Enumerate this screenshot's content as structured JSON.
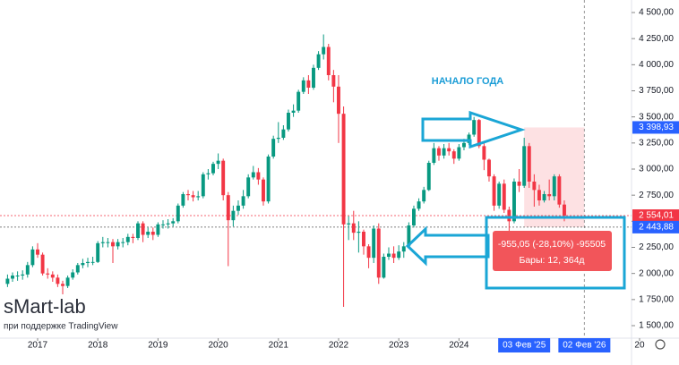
{
  "chart_data": {
    "type": "candlestick",
    "watermark": "sMart-lab",
    "watermark_sub": "при поддержке TradingView",
    "annotation": "НАЧАЛО ГОДА",
    "tooltip": [
      "-955,05 (-28,10%) -95505",
      "Бары: 12, 364д"
    ],
    "up_color": "#089981",
    "down_color": "#f23645",
    "xlim": [
      -1.5,
      124.4
    ],
    "ylim": [
      1380,
      4620
    ],
    "xticks": [
      {
        "value": 6,
        "label": "2017"
      },
      {
        "value": 18,
        "label": "2018"
      },
      {
        "value": 30,
        "label": "2019"
      },
      {
        "value": 42,
        "label": "2020"
      },
      {
        "value": 54,
        "label": "2021"
      },
      {
        "value": 66,
        "label": "2022"
      },
      {
        "value": 78,
        "label": "2023"
      },
      {
        "value": 90,
        "label": "2024"
      },
      {
        "value": 126,
        "label": "20"
      }
    ],
    "date_markers": [
      {
        "value": 103,
        "label": "03 Фев '25"
      },
      {
        "value": 115,
        "label": "02 Фев '26"
      }
    ],
    "yticks": [
      {
        "value": 1500,
        "label": "1 500,00"
      },
      {
        "value": 1750,
        "label": "1 750,00"
      },
      {
        "value": 2000,
        "label": "2 000,00"
      },
      {
        "value": 2250,
        "label": "2 250,00"
      },
      {
        "value": 2500,
        "label": "2 500,00"
      },
      {
        "value": 2750,
        "label": "2 750,00"
      },
      {
        "value": 3000,
        "label": "3 000,00"
      },
      {
        "value": 3250,
        "label": "3 250,00"
      },
      {
        "value": 3500,
        "label": "3 500,00"
      },
      {
        "value": 3750,
        "label": "3 750,00"
      },
      {
        "value": 4000,
        "label": "4 000,00"
      },
      {
        "value": 4250,
        "label": "4 250,00"
      },
      {
        "value": 4500,
        "label": "4 500,00"
      }
    ],
    "price_labels": [
      {
        "value": 3398.93,
        "label": "3 398,93",
        "color": "#2962ff"
      },
      {
        "value": 2554.01,
        "label": "2 554,01",
        "color": "#f23645"
      },
      {
        "value": 2443.88,
        "label": "2 443,88",
        "color": "#2962ff"
      }
    ],
    "open": [
      1900,
      1950,
      1980,
      1980,
      1990,
      2080,
      2230,
      2180,
      2000,
      1990,
      1960,
      1900,
      1880,
      1960,
      2010,
      2080,
      2100,
      2110,
      2110,
      2290,
      2300,
      2300,
      2260,
      2300,
      2300,
      2350,
      2340,
      2480,
      2370,
      2400,
      2370,
      2470,
      2470,
      2480,
      2500,
      2650,
      2760,
      2750,
      2730,
      2740,
      2950,
      2960,
      3050,
      3080,
      2750,
      2510,
      2600,
      2650,
      2740,
      2920,
      2970,
      2900,
      2690,
      3120,
      3290,
      3300,
      3380,
      3540,
      3560,
      3740,
      3850,
      3780,
      3970,
      4100,
      4170,
      3900,
      3790,
      3530,
      2470,
      2480,
      2390,
      2400,
      2260,
      2150,
      2430,
      1960,
      2160,
      2190,
      2150,
      2210,
      2260,
      2460,
      2620,
      2690,
      2800,
      3060,
      3200,
      3130,
      3200,
      3170,
      3100,
      3210,
      3250,
      3330,
      3470,
      3220,
      3090,
      2930,
      2650,
      2860,
      2610,
      2500,
      2880,
      2840,
      3220,
      2880,
      2800,
      2700,
      2760,
      2740,
      2930,
      2660
    ],
    "high": [
      1990,
      2010,
      2020,
      2030,
      2110,
      2260,
      2290,
      2200,
      2050,
      2020,
      1990,
      1930,
      1980,
      2040,
      2100,
      2140,
      2150,
      2160,
      2310,
      2350,
      2340,
      2330,
      2330,
      2340,
      2380,
      2380,
      2500,
      2500,
      2440,
      2440,
      2490,
      2510,
      2520,
      2530,
      2670,
      2780,
      2800,
      2790,
      2790,
      2970,
      3000,
      3070,
      3150,
      3100,
      2780,
      2650,
      2700,
      2800,
      2950,
      3030,
      3010,
      2920,
      3140,
      3320,
      3450,
      3420,
      3570,
      3620,
      3760,
      3880,
      3900,
      4000,
      4130,
      4290,
      4200,
      3950,
      3900,
      3600,
      2550,
      2600,
      2500,
      2420,
      2280,
      2460,
      2480,
      2190,
      2250,
      2260,
      2270,
      2300,
      2490,
      2650,
      2720,
      2830,
      3080,
      3250,
      3220,
      3240,
      3250,
      3190,
      3240,
      3290,
      3350,
      3500,
      3480,
      3260,
      3100,
      2950,
      2880,
      2900,
      2640,
      2910,
      3000,
      3300,
      3250,
      2950,
      2850,
      2790,
      2900,
      2950,
      2950,
      2700
    ],
    "low": [
      1870,
      1920,
      1930,
      1940,
      1960,
      2060,
      2150,
      1980,
      1950,
      1920,
      1870,
      1800,
      1860,
      1940,
      1990,
      2050,
      2060,
      2080,
      2100,
      2250,
      2250,
      2100,
      2230,
      2250,
      2270,
      2290,
      2320,
      2300,
      2340,
      2320,
      2350,
      2430,
      2430,
      2450,
      2480,
      2630,
      2700,
      2690,
      2700,
      2720,
      2900,
      2940,
      3000,
      2700,
      2070,
      2450,
      2560,
      2620,
      2720,
      2900,
      2850,
      2650,
      2670,
      3100,
      3250,
      3280,
      3360,
      3500,
      3540,
      3720,
      3720,
      3760,
      3950,
      4050,
      3850,
      3640,
      3250,
      1680,
      2320,
      2320,
      2200,
      2180,
      2050,
      2100,
      1900,
      1950,
      2130,
      2100,
      2130,
      2150,
      2240,
      2440,
      2600,
      2670,
      2790,
      3040,
      3080,
      3100,
      3130,
      3050,
      3080,
      3180,
      3230,
      3310,
      3200,
      2990,
      2880,
      2600,
      2620,
      2580,
      2310,
      2480,
      2780,
      2820,
      2820,
      2640,
      2650,
      2680,
      2700,
      2700,
      2630,
      2500
    ],
    "close": [
      1950,
      1980,
      1980,
      1990,
      2080,
      2230,
      2180,
      2000,
      1990,
      1960,
      1900,
      1880,
      1960,
      2010,
      2080,
      2100,
      2110,
      2110,
      2290,
      2300,
      2300,
      2260,
      2300,
      2300,
      2350,
      2340,
      2480,
      2370,
      2400,
      2370,
      2470,
      2470,
      2480,
      2500,
      2650,
      2760,
      2750,
      2730,
      2740,
      2950,
      2960,
      3050,
      3080,
      2750,
      2510,
      2600,
      2650,
      2740,
      2920,
      2970,
      2900,
      2690,
      3120,
      3290,
      3300,
      3380,
      3540,
      3560,
      3740,
      3850,
      3780,
      3970,
      4100,
      4170,
      3900,
      3790,
      3530,
      2470,
      2480,
      2390,
      2400,
      2260,
      2150,
      2430,
      1960,
      2160,
      2190,
      2150,
      2210,
      2260,
      2460,
      2620,
      2690,
      2800,
      3060,
      3200,
      3130,
      3200,
      3170,
      3100,
      3210,
      3250,
      3330,
      3470,
      3220,
      3090,
      2930,
      2650,
      2860,
      2610,
      2500,
      2880,
      2840,
      3220,
      2880,
      2800,
      2700,
      2760,
      2740,
      2930,
      2660,
      2554.01
    ]
  }
}
